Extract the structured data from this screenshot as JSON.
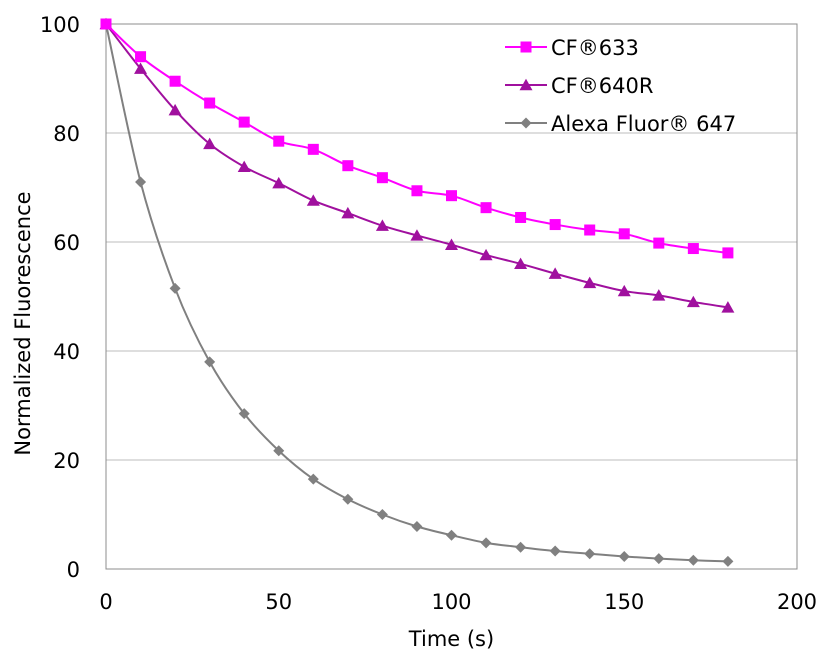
{
  "chart_data": {
    "type": "line",
    "title": "",
    "xlabel": "Time (s)",
    "ylabel": "Normalized Fluorescence",
    "xlim": [
      0,
      200
    ],
    "ylim": [
      0,
      100
    ],
    "xticks": [
      0,
      50,
      100,
      150,
      200
    ],
    "yticks": [
      0,
      20,
      40,
      60,
      80,
      100
    ],
    "grid": "horizontal",
    "legend_position": "top-right",
    "x": [
      0,
      10,
      20,
      30,
      40,
      50,
      60,
      70,
      80,
      90,
      100,
      110,
      120,
      130,
      140,
      150,
      160,
      170,
      180
    ],
    "series": [
      {
        "name": "CF®633",
        "color": "#ff00ff",
        "marker": "square",
        "values": [
          100,
          94,
          89.5,
          85.5,
          82,
          78.5,
          77,
          74,
          71.8,
          69.4,
          68.5,
          66.3,
          64.5,
          63.2,
          62.2,
          61.5,
          59.8,
          58.8,
          58
        ]
      },
      {
        "name": "CF®640R",
        "color": "#a0109e",
        "marker": "triangle",
        "values": [
          100,
          91.8,
          84.2,
          78,
          73.8,
          70.8,
          67.6,
          65.3,
          63,
          61.2,
          59.5,
          57.6,
          56,
          54.2,
          52.5,
          51,
          50.2,
          49,
          48
        ]
      },
      {
        "name": "Alexa Fluor® 647",
        "color": "#808080",
        "marker": "diamond",
        "values": [
          100,
          71,
          51.5,
          38,
          28.5,
          21.7,
          16.5,
          12.8,
          10,
          7.8,
          6.2,
          4.8,
          4,
          3.3,
          2.8,
          2.3,
          1.9,
          1.6,
          1.4
        ]
      }
    ]
  }
}
